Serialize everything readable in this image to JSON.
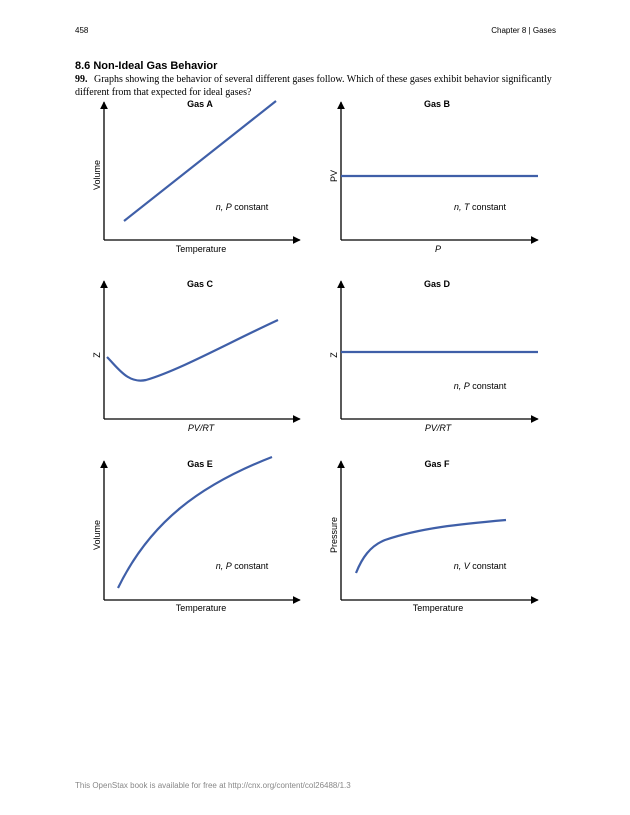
{
  "header": {
    "page_number": "458",
    "chapter": "Chapter 8 | Gases"
  },
  "section_title": "8.6 Non-Ideal Gas Behavior",
  "question": {
    "number": "99.",
    "text": "Graphs showing the behavior of several different gases follow. Which of these gases exhibit behavior significantly different from that expected for ideal gases?"
  },
  "graphs": [
    {
      "title": "Gas A",
      "xlabel": "Temperature",
      "ylabel": "Volume",
      "note_var": "n, P",
      "note_rest": " constant"
    },
    {
      "title": "Gas B",
      "xlabel": "P",
      "ylabel": "PV",
      "note_var": "n, T",
      "note_rest": " constant"
    },
    {
      "title": "Gas C",
      "xlabel": "PV/RT",
      "ylabel": "Z",
      "note_var": "",
      "note_rest": ""
    },
    {
      "title": "Gas D",
      "xlabel": "PV/RT",
      "ylabel": "Z",
      "note_var": "n, P",
      "note_rest": " constant"
    },
    {
      "title": "Gas E",
      "xlabel": "Temperature",
      "ylabel": "Volume",
      "note_var": "n, P",
      "note_rest": " constant"
    },
    {
      "title": "Gas F",
      "xlabel": "Temperature",
      "ylabel": "Pressure",
      "note_var": "n, V",
      "note_rest": " constant"
    }
  ],
  "colors": {
    "curve": "#3f5fa8",
    "axis": "#000000"
  },
  "footer": "This OpenStax book is available for free at http://cnx.org/content/col26488/1.3"
}
